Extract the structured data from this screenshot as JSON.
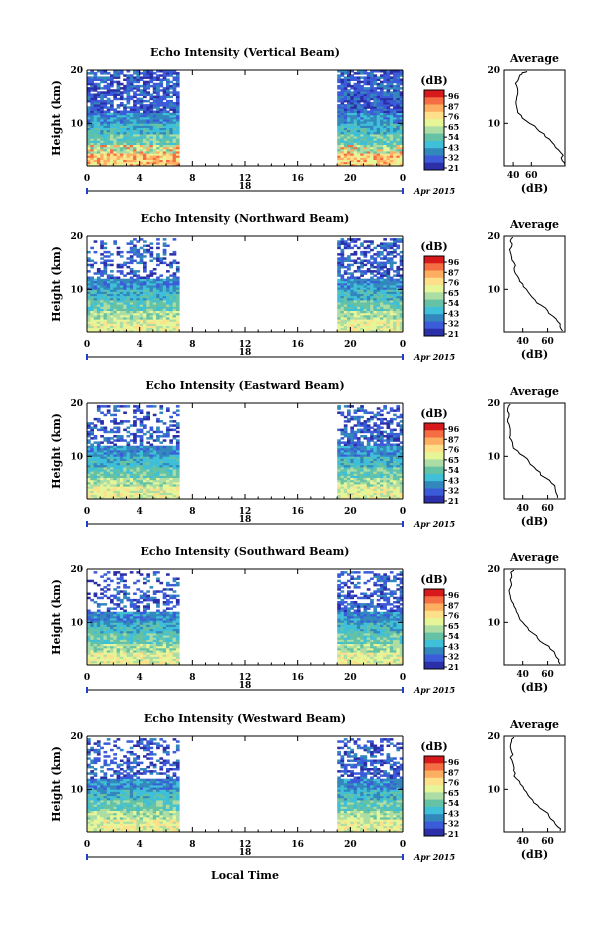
{
  "chart_data": {
    "type": "heatmap",
    "date_label": "Apr 2015",
    "x_label": "Local Time",
    "colorbar_unit": "(dB)",
    "colorbar_ticks": [
      "96",
      "87",
      "76",
      "65",
      "54",
      "43",
      "32",
      "21"
    ],
    "colorbar_colors": [
      "#d7191c",
      "#f46d43",
      "#fdae61",
      "#fee08b",
      "#e6f598",
      "#abdda4",
      "#66c2a5",
      "#3fbfd8",
      "#3288bd",
      "#3b5bd9",
      "#2b2fa8"
    ],
    "profile_title": "Average",
    "profile_xlabel": "(dB)",
    "profile_xticks": [
      "40",
      "60"
    ],
    "y_ticks": [
      "20",
      "10"
    ],
    "y_label": "Height (km)",
    "x_ticks": [
      "0",
      "4",
      "8",
      "12",
      "16",
      "20",
      "0"
    ],
    "day_label": "18",
    "time_range_h": [
      0,
      24
    ],
    "height_range_km": [
      2,
      20
    ],
    "data_gap_h": [
      7,
      18.8
    ],
    "panels": [
      {
        "title": "Echo Intensity (Vertical Beam)",
        "profile": [
          [
            97,
            2.2
          ],
          [
            94,
            3
          ],
          [
            95,
            4
          ],
          [
            90,
            5
          ],
          [
            85,
            6
          ],
          [
            80,
            7
          ],
          [
            74,
            8
          ],
          [
            66,
            9
          ],
          [
            58,
            10
          ],
          [
            50,
            11
          ],
          [
            45,
            12
          ],
          [
            44,
            13
          ],
          [
            43,
            14
          ],
          [
            44,
            15
          ],
          [
            45,
            16
          ],
          [
            44,
            17
          ],
          [
            45,
            18
          ],
          [
            47,
            19
          ],
          [
            50,
            19.5
          ],
          [
            55,
            19.8
          ]
        ]
      },
      {
        "title": "Echo Intensity (Northward Beam)",
        "profile": [
          [
            72,
            2.2
          ],
          [
            70,
            3
          ],
          [
            68,
            4
          ],
          [
            64,
            5
          ],
          [
            60,
            6
          ],
          [
            55,
            7
          ],
          [
            50,
            8
          ],
          [
            46,
            9
          ],
          [
            43,
            10
          ],
          [
            40,
            11
          ],
          [
            37,
            12
          ],
          [
            34,
            13
          ],
          [
            33,
            14
          ],
          [
            33,
            15
          ],
          [
            31,
            16
          ],
          [
            30,
            17
          ],
          [
            31,
            18
          ],
          [
            30,
            19
          ],
          [
            32,
            19.8
          ]
        ]
      },
      {
        "title": "Echo Intensity (Eastward Beam)",
        "profile": [
          [
            68,
            2.2
          ],
          [
            67,
            3
          ],
          [
            66,
            4
          ],
          [
            63,
            5
          ],
          [
            58,
            6
          ],
          [
            54,
            7
          ],
          [
            49,
            8
          ],
          [
            45,
            9
          ],
          [
            41,
            10
          ],
          [
            36,
            11
          ],
          [
            32,
            12
          ],
          [
            31,
            13
          ],
          [
            30,
            14
          ],
          [
            30,
            15
          ],
          [
            29,
            16
          ],
          [
            28,
            17
          ],
          [
            29,
            18
          ],
          [
            28,
            19
          ],
          [
            30,
            19.8
          ]
        ]
      },
      {
        "title": "Echo Intensity (Southward Beam)",
        "profile": [
          [
            70,
            2.2
          ],
          [
            69,
            3
          ],
          [
            66,
            4
          ],
          [
            62,
            5
          ],
          [
            57,
            6
          ],
          [
            52,
            7
          ],
          [
            48,
            8
          ],
          [
            44,
            9
          ],
          [
            40,
            10
          ],
          [
            37,
            11
          ],
          [
            35,
            12
          ],
          [
            33,
            13
          ],
          [
            31,
            14
          ],
          [
            30,
            15
          ],
          [
            29,
            16
          ],
          [
            31,
            17
          ],
          [
            30,
            18
          ],
          [
            31,
            19
          ],
          [
            33,
            19.8
          ]
        ]
      },
      {
        "title": "Echo Intensity (Westward Beam)",
        "profile": [
          [
            70,
            2.2
          ],
          [
            68,
            3
          ],
          [
            65,
            4
          ],
          [
            61,
            5
          ],
          [
            57,
            6
          ],
          [
            52,
            7
          ],
          [
            48,
            8
          ],
          [
            44,
            9
          ],
          [
            41,
            10
          ],
          [
            38,
            11
          ],
          [
            35,
            12
          ],
          [
            34,
            13
          ],
          [
            33,
            14
          ],
          [
            32,
            15
          ],
          [
            30,
            16
          ],
          [
            31,
            17
          ],
          [
            30,
            18
          ],
          [
            31,
            19
          ],
          [
            33,
            19.8
          ]
        ]
      }
    ]
  }
}
